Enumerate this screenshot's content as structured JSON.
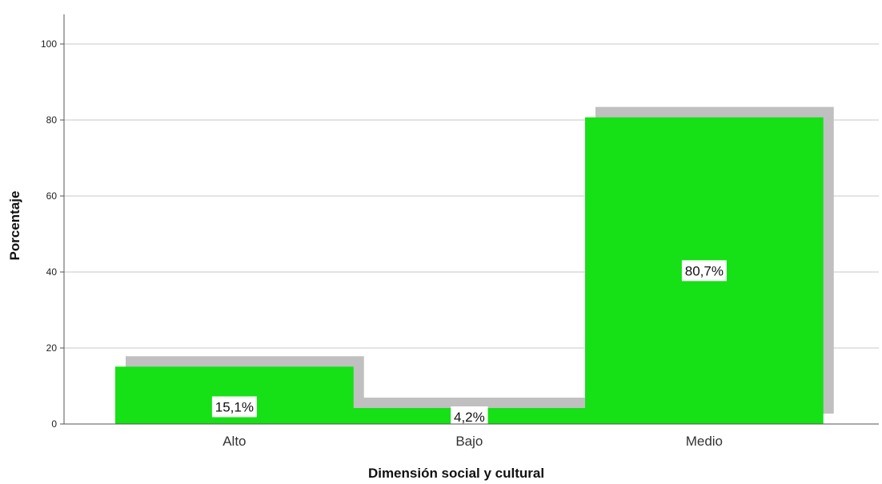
{
  "chart_data": {
    "type": "bar",
    "categories": [
      "Alto",
      "Bajo",
      "Medio"
    ],
    "values": [
      15.1,
      4.2,
      80.7
    ],
    "data_labels": [
      "15,1%",
      "4,2%",
      "80,7%"
    ],
    "xlabel": "Dimensión social y cultural",
    "ylabel": "Porcentaje",
    "ylim": [
      0,
      100
    ],
    "yticks": [
      0,
      20,
      40,
      60,
      80,
      100
    ],
    "grid": true,
    "colors": {
      "bar": "#16e016",
      "shadow": "#c0c0c0",
      "grid": "#c8c8c8",
      "axis": "#555555"
    }
  }
}
